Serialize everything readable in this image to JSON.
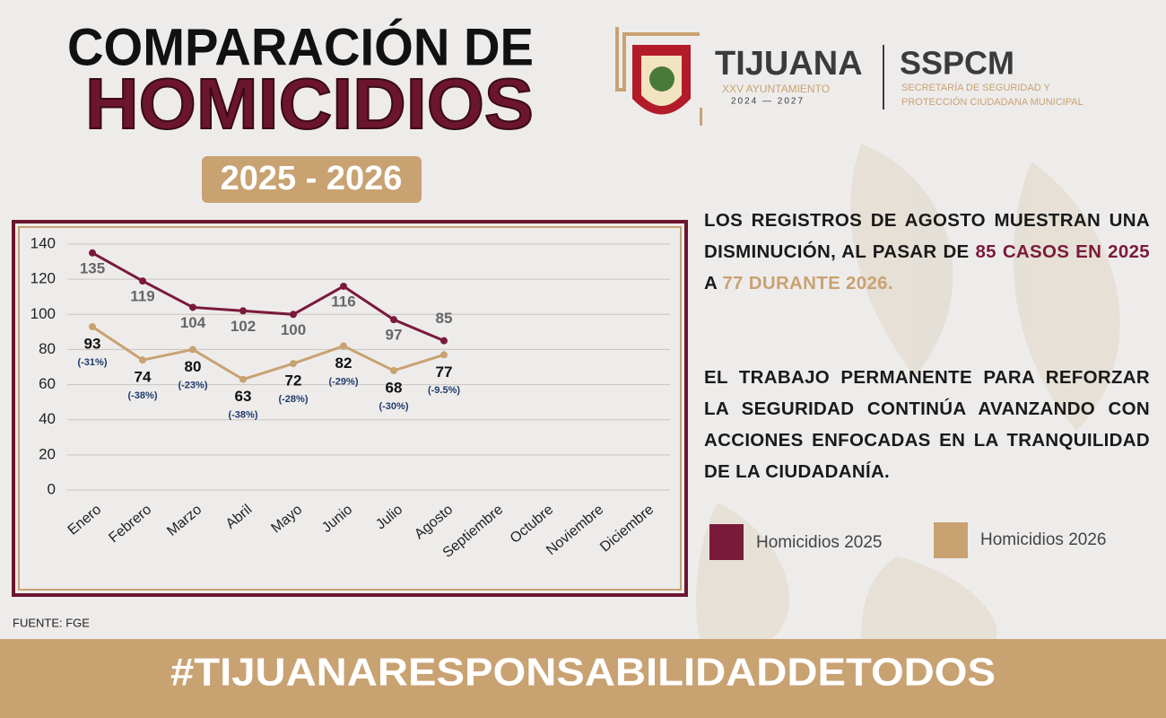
{
  "header": {
    "title_line1": "COMPARACIÓN DE",
    "title_line2": "HOMICIDIOS",
    "years": "2025 - 2026"
  },
  "logo": {
    "city": "TIJUANA",
    "council": "XXV AYUNTAMIENTO",
    "term": "2024 — 2027",
    "agency": "SSPCM",
    "agency_line1": "SECRETARÍA DE SEGURIDAD Y",
    "agency_line2": "PROTECCIÓN CIUDADANA MUNICIPAL"
  },
  "chart_data": {
    "type": "line",
    "categories": [
      "Enero",
      "Febrero",
      "Marzo",
      "Abril",
      "Mayo",
      "Junio",
      "Julio",
      "Agosto",
      "Septiembre",
      "Octubre",
      "Noviembre",
      "Diciembre"
    ],
    "series": [
      {
        "name": "Homicidios 2025",
        "color": "#7a1a3a",
        "values": [
          135,
          119,
          104,
          102,
          100,
          116,
          97,
          85,
          null,
          null,
          null,
          null
        ]
      },
      {
        "name": "Homicidios 2026",
        "color": "#c9a272",
        "values": [
          93,
          74,
          80,
          63,
          72,
          82,
          68,
          77,
          null,
          null,
          null,
          null
        ],
        "annotations": [
          "(-31%)",
          "(-38%)",
          "(-23%)",
          "(-38%)",
          "(-28%)",
          "(-29%)",
          "(-30%)",
          "(-9.5%)",
          null,
          null,
          null,
          null
        ]
      }
    ],
    "ylim": [
      0,
      140
    ],
    "yticks": [
      0,
      20,
      40,
      60,
      80,
      100,
      120,
      140
    ],
    "grid": true
  },
  "text": {
    "paragraph1": [
      {
        "text": "LOS REGISTROS DE AGOSTO MUESTRAN UNA DISMINUCIÓN, AL PASAR DE ",
        "color": "#1a1a1a"
      },
      {
        "text": "85 CASOS EN 2025",
        "color": "#7a1a3a"
      },
      {
        "text": " A ",
        "color": "#1a1a1a"
      },
      {
        "text": "77 DURANTE 2026.",
        "color": "#c9a272"
      }
    ],
    "paragraph2": "EL TRABAJO PERMANENTE PARA REFORZAR LA SEGURIDAD CONTINÚA AVANZANDO CON ACCIONES ENFOCADAS EN LA TRANQUILIDAD DE LA CIUDADANÍA."
  },
  "source": "FUENTE: FGE",
  "hashtag": "#TIJUANARESPONSABILIDADDETODOS"
}
